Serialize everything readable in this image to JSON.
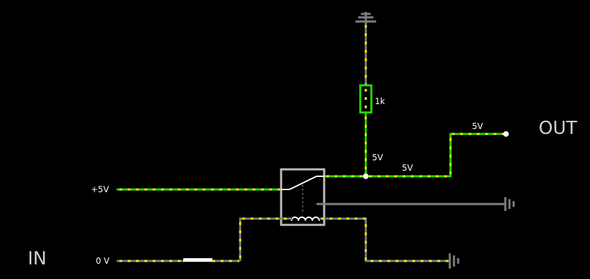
{
  "labels": {
    "in_label": "IN",
    "out_label": "OUT",
    "supply_label": "+5V",
    "zero_label": "0 V",
    "resistor_value": "1k",
    "node_voltage_a": "5V",
    "node_voltage_b": "5V",
    "out_voltage": "5V"
  },
  "colors": {
    "active_wire": "#22dd00",
    "inactive_wire": "#7f7f7f",
    "current_dots": "#ffee00",
    "background": "#000000"
  },
  "icons": [
    "ground-icon",
    "relay-icon",
    "resistor-icon",
    "switch-icon"
  ]
}
